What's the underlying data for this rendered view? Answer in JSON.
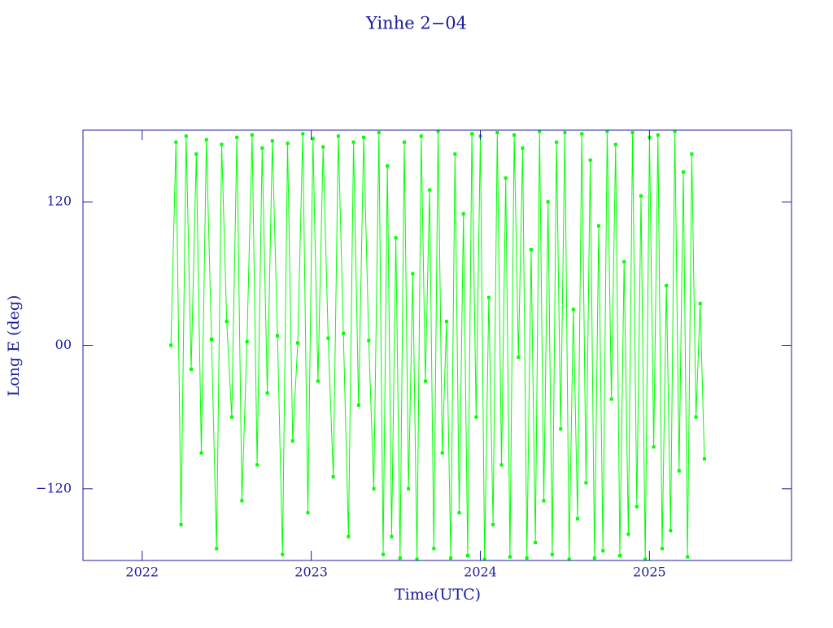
{
  "chart_data": {
    "type": "line",
    "title": "Yinhe 2−04",
    "xlabel": "Time(UTC)",
    "ylabel": "Long E (deg)",
    "x": [
      2022.17,
      2022.2,
      2022.23,
      2022.26,
      2022.29,
      2022.32,
      2022.35,
      2022.38,
      2022.41,
      2022.44,
      2022.47,
      2022.5,
      2022.53,
      2022.56,
      2022.59,
      2022.62,
      2022.65,
      2022.68,
      2022.71,
      2022.74,
      2022.77,
      2022.8,
      2022.83,
      2022.86,
      2022.89,
      2022.92,
      2022.95,
      2022.98,
      2023.01,
      2023.04,
      2023.07,
      2023.1,
      2023.13,
      2023.16,
      2023.19,
      2023.22,
      2023.25,
      2023.28,
      2023.31,
      2023.34,
      2023.37,
      2023.4,
      2023.425,
      2023.45,
      2023.475,
      2023.5,
      2023.525,
      2023.55,
      2023.575,
      2023.6,
      2023.625,
      2023.65,
      2023.675,
      2023.7,
      2023.725,
      2023.75,
      2023.775,
      2023.8,
      2023.825,
      2023.85,
      2023.875,
      2023.9,
      2023.925,
      2023.95,
      2023.975,
      2024,
      2024.025,
      2024.05,
      2024.075,
      2024.1,
      2024.125,
      2024.15,
      2024.175,
      2024.2,
      2024.225,
      2024.25,
      2024.275,
      2024.3,
      2024.325,
      2024.35,
      2024.375,
      2024.4,
      2024.425,
      2024.45,
      2024.475,
      2024.5,
      2024.525,
      2024.55,
      2024.575,
      2024.6,
      2024.625,
      2024.65,
      2024.675,
      2024.7,
      2024.725,
      2024.75,
      2024.775,
      2024.8,
      2024.825,
      2024.85,
      2024.875,
      2024.9,
      2024.925,
      2024.95,
      2024.975,
      2025,
      2025.025,
      2025.05,
      2025.075,
      2025.1,
      2025.125,
      2025.15,
      2025.175,
      2025.2,
      2025.225,
      2025.25,
      2025.275,
      2025.3,
      2025.325
    ],
    "series": [
      {
        "color": "#00ff00",
        "values": [
          0,
          170,
          -150,
          175,
          -20,
          160,
          -90,
          172,
          5,
          -170,
          168,
          20,
          -60,
          174,
          -130,
          3,
          176,
          -100,
          165,
          -40,
          171,
          8,
          -175,
          169,
          -80,
          2,
          177,
          -140,
          173,
          -30,
          166,
          6,
          -110,
          175,
          10,
          -160,
          170,
          -50,
          174,
          4,
          -120,
          178,
          -175,
          150,
          -160,
          90,
          -178,
          170,
          -120,
          60,
          -179,
          175,
          -30,
          130,
          -170,
          179,
          -90,
          20,
          -178,
          160,
          -140,
          110,
          -176,
          177,
          -60,
          175,
          -179,
          40,
          -150,
          178,
          -100,
          140,
          -177,
          176,
          -10,
          165,
          -178,
          80,
          -165,
          179,
          -130,
          120,
          -175,
          170,
          -70,
          178,
          -179,
          30,
          -145,
          177,
          -115,
          155,
          -178,
          100,
          -172,
          179,
          -45,
          168,
          -176,
          70,
          -158,
          178,
          -135,
          125,
          -179,
          174,
          -85,
          176,
          -170,
          50,
          -155,
          179,
          -105,
          145,
          -177,
          160,
          -60,
          35,
          -95
        ]
      }
    ],
    "xlim": [
      2021.65,
      2025.84
    ],
    "xticks": [
      2022,
      2023,
      2024,
      2025
    ],
    "ylim": [
      -180,
      180
    ],
    "yticks": [
      {
        "value": -120,
        "label": "−120"
      },
      {
        "value": 0,
        "label": "00"
      },
      {
        "value": 120,
        "label": "120"
      }
    ]
  }
}
